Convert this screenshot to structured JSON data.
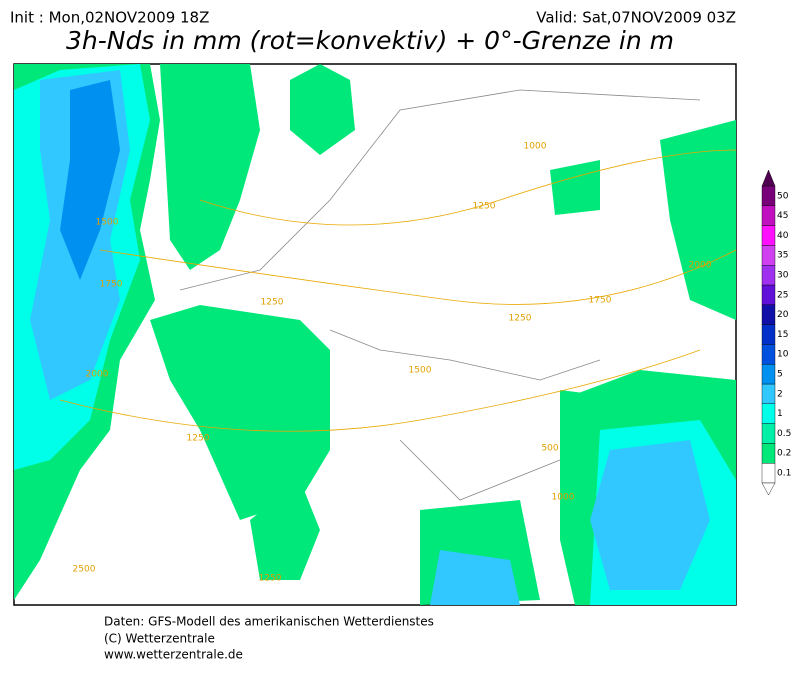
{
  "header": {
    "init": "Init : Mon,02NOV2009 18Z",
    "valid": "Valid: Sat,07NOV2009 03Z",
    "title": "3h-Nds in mm (rot=konvektiv) + 0°-Grenze in m"
  },
  "legend": {
    "labels": [
      "0.1",
      "0.2",
      "0.5",
      "1",
      "2",
      "5",
      "10",
      "15",
      "20",
      "25",
      "30",
      "35",
      "40",
      "45",
      "50"
    ],
    "colors": [
      "#ffffff",
      "#00e87a",
      "#00f0a8",
      "#00ffe8",
      "#30c8ff",
      "#0090f0",
      "#0050e0",
      "#0030c8",
      "#1010a8",
      "#6010d8",
      "#a030f0",
      "#d040f0",
      "#ff10ff",
      "#c010c0",
      "#780078"
    ]
  },
  "contours": [
    "1000",
    "1250",
    "1500",
    "1750",
    "2000",
    "1250",
    "1250",
    "2500",
    "1500",
    "1250",
    "500",
    "1000",
    "1250",
    "1750",
    "2000"
  ],
  "footer": [
    "Daten: GFS-Modell des amerikanischen Wetterdienstes",
    "(C) Wetterzentrale",
    "www.wetterzentrale.de"
  ]
}
